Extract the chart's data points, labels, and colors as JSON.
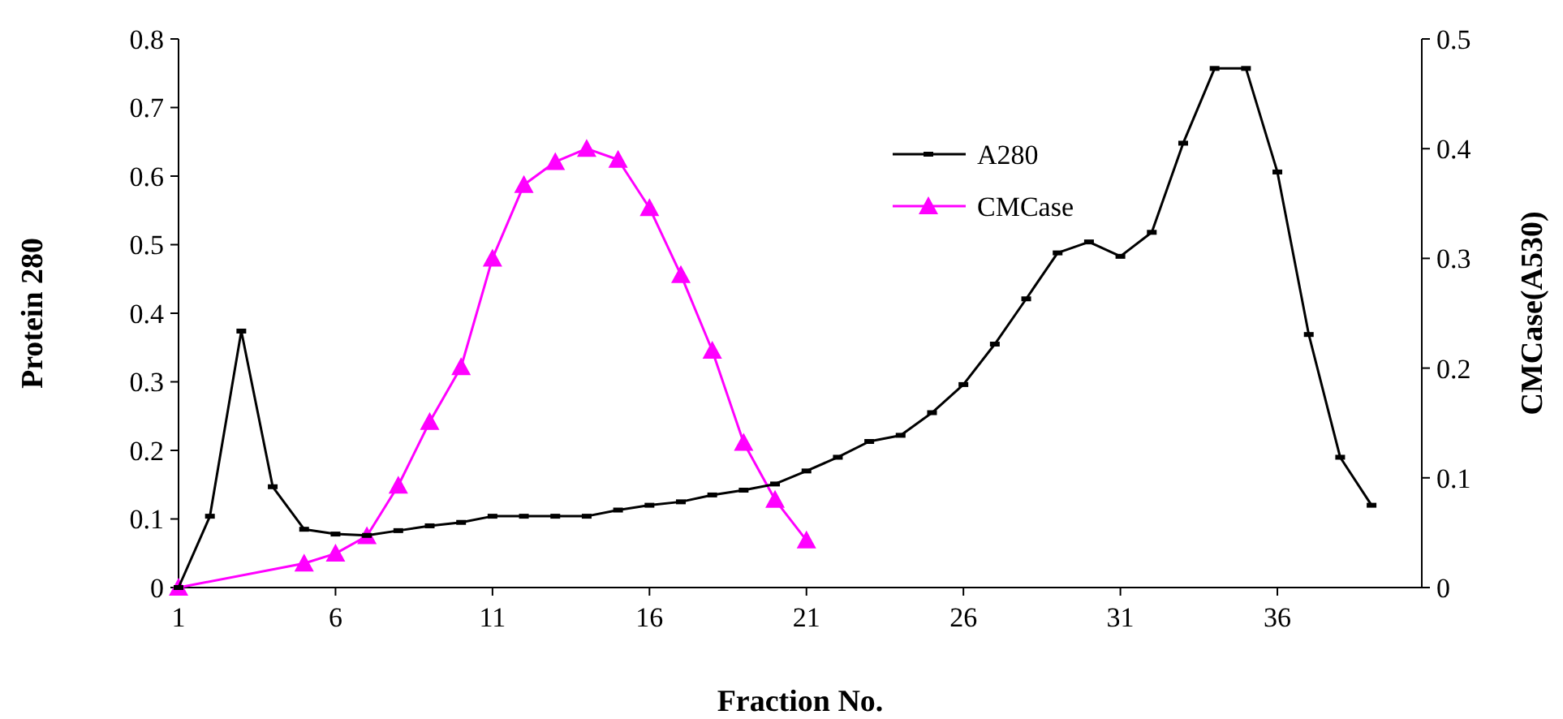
{
  "chart_data": {
    "type": "line",
    "xlabel": "Fraction No.",
    "ylabel": "Protein 280",
    "y2label": "CMCase(A530)",
    "xlim": [
      1,
      40.6
    ],
    "xticks": [
      1,
      6,
      11,
      16,
      21,
      26,
      31,
      36
    ],
    "ylim": [
      0,
      0.8
    ],
    "yticks": [
      0,
      0.1,
      0.2,
      0.3,
      0.4,
      0.5,
      0.6,
      0.7,
      0.8
    ],
    "y2lim": [
      0,
      0.5
    ],
    "y2ticks": [
      0,
      0.1,
      0.2,
      0.3,
      0.4,
      0.5
    ],
    "grid": false,
    "legend": "top",
    "series": [
      {
        "name": "A280",
        "color": "#000000",
        "marker": "square",
        "x": [
          1,
          2,
          3,
          4,
          5,
          6,
          7,
          8,
          9,
          10,
          11,
          12,
          13,
          14,
          15,
          16,
          17,
          18,
          19,
          20,
          21,
          22,
          23,
          24,
          25,
          26,
          27,
          28,
          29,
          30,
          31,
          32,
          33,
          34,
          35,
          36,
          37,
          38,
          39
        ],
        "values": [
          0,
          0.104,
          0.374,
          0.147,
          0.085,
          0.078,
          0.076,
          0.083,
          0.09,
          0.095,
          0.104,
          0.104,
          0.104,
          0.104,
          0.113,
          0.12,
          0.125,
          0.135,
          0.142,
          0.151,
          0.17,
          0.19,
          0.213,
          0.222,
          0.255,
          0.296,
          0.355,
          0.421,
          0.488,
          0.504,
          0.483,
          0.518,
          0.648,
          0.757,
          0.757,
          0.606,
          0.369,
          0.19,
          0.12
        ]
      },
      {
        "name": "CMCase",
        "color": "#ff00ff",
        "marker": "triangle",
        "axis": "y2",
        "x": [
          1,
          5,
          6,
          7,
          8,
          9,
          10,
          11,
          12,
          13,
          14,
          15,
          16,
          17,
          18,
          19,
          20,
          21
        ],
        "values": [
          0,
          0.022,
          0.031,
          0.047,
          0.093,
          0.151,
          0.201,
          0.3,
          0.367,
          0.388,
          0.4,
          0.39,
          0.346,
          0.285,
          0.216,
          0.132,
          0.08,
          0.043
        ]
      }
    ]
  }
}
